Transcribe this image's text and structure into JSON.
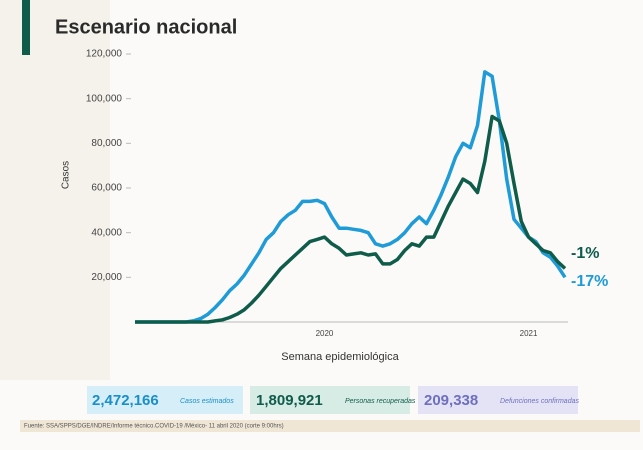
{
  "title": "Escenario nacional",
  "chart_data": {
    "type": "line",
    "y_label": "Casos",
    "x_label": "Semana epidemiológica",
    "categories": [
      null,
      null,
      null,
      null,
      null,
      null,
      null,
      null,
      null,
      null,
      null,
      null,
      null,
      null,
      null,
      null,
      null,
      null,
      null,
      null,
      null,
      null,
      null,
      null,
      null,
      null,
      "2020",
      null,
      null,
      null,
      null,
      null,
      null,
      null,
      null,
      null,
      null,
      null,
      null,
      null,
      null,
      null,
      null,
      null,
      null,
      null,
      null,
      null,
      null,
      null,
      null,
      null,
      null,
      null,
      "2021",
      null,
      null,
      null,
      null,
      null
    ],
    "series": [
      {
        "color": "#1f9bd7",
        "values": [
          0,
          0,
          0,
          0,
          0,
          0,
          0,
          0,
          500,
          1500,
          3500,
          6500,
          10000,
          14000,
          17000,
          21000,
          26000,
          31000,
          37000,
          40000,
          45000,
          48000,
          50000,
          54000,
          54000,
          54500,
          53000,
          47000,
          42000,
          42000,
          41500,
          41000,
          40000,
          35000,
          34000,
          35000,
          37000,
          40000,
          44000,
          47000,
          44000,
          50000,
          57000,
          65000,
          74000,
          80000,
          78000,
          88000,
          112000,
          110000,
          90000,
          64000,
          46000,
          42000,
          38000,
          36000,
          31000,
          29000,
          25000,
          20000
        ]
      },
      {
        "color": "#0f5c4a",
        "values": [
          0,
          0,
          0,
          0,
          0,
          0,
          0,
          0,
          0,
          0,
          0,
          500,
          1000,
          2000,
          3500,
          5500,
          8500,
          12000,
          16000,
          20000,
          24000,
          27000,
          30000,
          33000,
          36000,
          37000,
          38000,
          35000,
          33000,
          30000,
          30500,
          31000,
          30000,
          30500,
          26000,
          26000,
          28000,
          32000,
          35000,
          34000,
          38000,
          38000,
          45000,
          52000,
          58000,
          64000,
          62000,
          58000,
          72000,
          92000,
          90000,
          80000,
          62000,
          45000,
          38000,
          35000,
          32000,
          31000,
          27000,
          24000
        ]
      }
    ],
    "ylim": [
      0,
      120000
    ],
    "yticks": [
      {
        "value": 20000,
        "label": "20,000"
      },
      {
        "value": 40000,
        "label": "40,000"
      },
      {
        "value": 60000,
        "label": "60,000"
      },
      {
        "value": 80000,
        "label": "80,000"
      },
      {
        "value": 100000,
        "label": "100,000"
      },
      {
        "value": 120000,
        "label": "120,000"
      }
    ],
    "annotations": [
      {
        "text": "-1%",
        "color": "#0f5c4a"
      },
      {
        "text": "-17%",
        "color": "#1f9bd7"
      }
    ]
  },
  "summary": [
    {
      "number": "2,472,166",
      "label": "Casos estimados"
    },
    {
      "number": "1,809,921",
      "label": "Personas recuperadas"
    },
    {
      "number": "209,338",
      "label": "Defunciones confirmadas"
    }
  ],
  "footer": "Fuente: SSA/SPPS/DGE/INDRE/Informe técnico.COVID-19 /México- 11 abril 2020 (corte 9:00hrs)"
}
